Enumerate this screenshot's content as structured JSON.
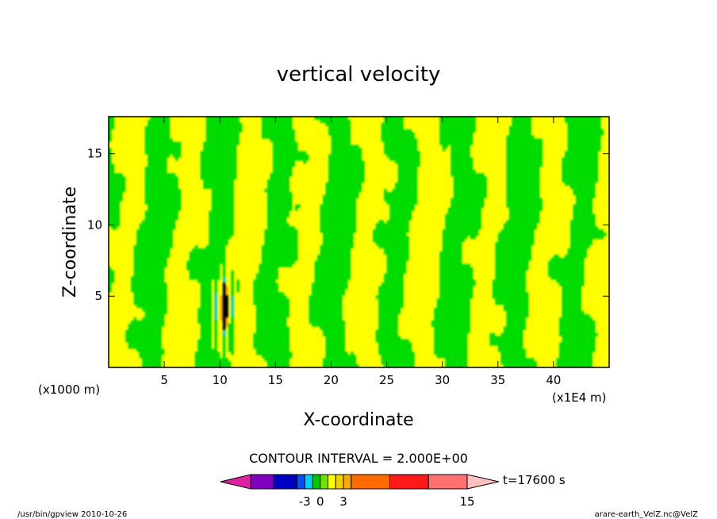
{
  "chart_data": {
    "type": "heatmap",
    "title": "vertical velocity",
    "xlabel": "X-coordinate",
    "ylabel": "Z-coordinate",
    "x_units_left": "(x1000 m)",
    "x_units_right": "(x1E4 m)",
    "xlim": [
      0,
      45
    ],
    "ylim": [
      0,
      17.6
    ],
    "x_ticks": [
      5,
      10,
      15,
      20,
      25,
      30,
      35,
      40
    ],
    "y_ticks": [
      5,
      10,
      15
    ],
    "x_tick_labels": [
      "5",
      "10",
      "15",
      "20",
      "25",
      "30",
      "35",
      "40"
    ],
    "y_tick_labels": [
      "5",
      "10",
      "15"
    ],
    "contour_interval_text": "CONTOUR INTERVAL = 2.000E+00",
    "time_text": "t=17600 s",
    "colorbar": {
      "tick_values": [
        -3,
        0,
        3,
        15
      ],
      "tick_labels": [
        "-3",
        "0",
        "3",
        "15"
      ],
      "colors": [
        "#e020a0",
        "#8000c0",
        "#0000c0",
        "#0050ff",
        "#00d0ff",
        "#00c800",
        "#70e000",
        "#ffff00",
        "#f0d000",
        "#ffaa00",
        "#ff6a00",
        "#ff1a1a",
        "#ff7070",
        "#ffc0c0"
      ],
      "segment_weights": [
        0,
        3,
        3,
        1,
        1,
        1,
        1,
        1,
        1,
        1,
        5,
        5,
        5,
        0
      ]
    },
    "field_colors": {
      "positive": "#ffff00",
      "negative": "#00dc00",
      "strong_up": "#ffaa00",
      "strong_down": "#00c8ff",
      "core": "#000000"
    }
  },
  "footer": {
    "left": "/usr/bin/gpview  2010-10-26",
    "right": "arare-earth_VelZ.nc@VelZ"
  }
}
